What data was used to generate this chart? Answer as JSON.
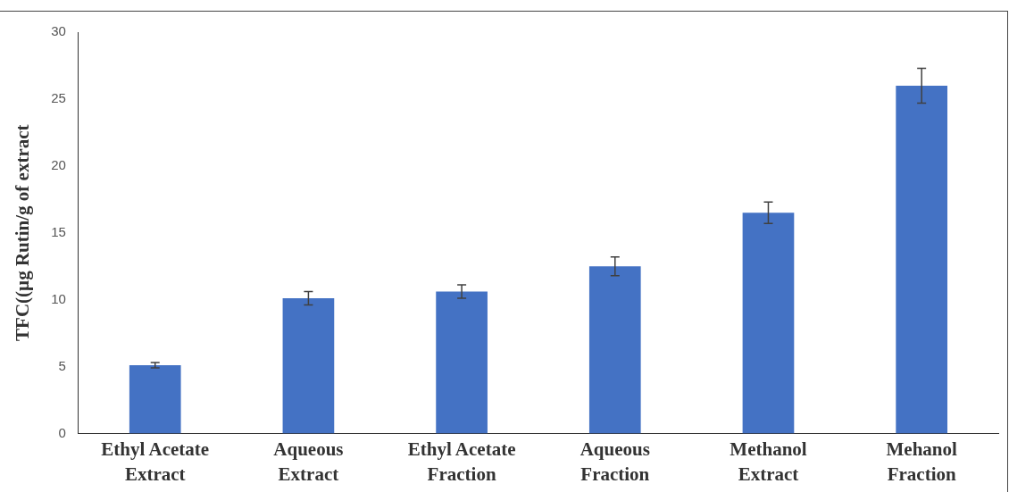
{
  "chart_data": {
    "type": "bar",
    "ylabel": "TFC((µg Rutin/g of extract",
    "categories": [
      "Ethyl Acetate Extract",
      "Aqueous Extract",
      "Ethyl Acetate Fraction",
      "Aqueous Fraction",
      "Methanol Extract",
      "Mehanol Fraction"
    ],
    "values": [
      5.1,
      10.1,
      10.6,
      12.5,
      16.5,
      26.0
    ],
    "errors": [
      0.2,
      0.5,
      0.5,
      0.7,
      0.8,
      1.3
    ],
    "color": "#4472c4",
    "ylim": [
      0,
      30
    ],
    "yticks": [
      0,
      5,
      10,
      15,
      20,
      25,
      30
    ],
    "grid": false,
    "legend": false
  }
}
